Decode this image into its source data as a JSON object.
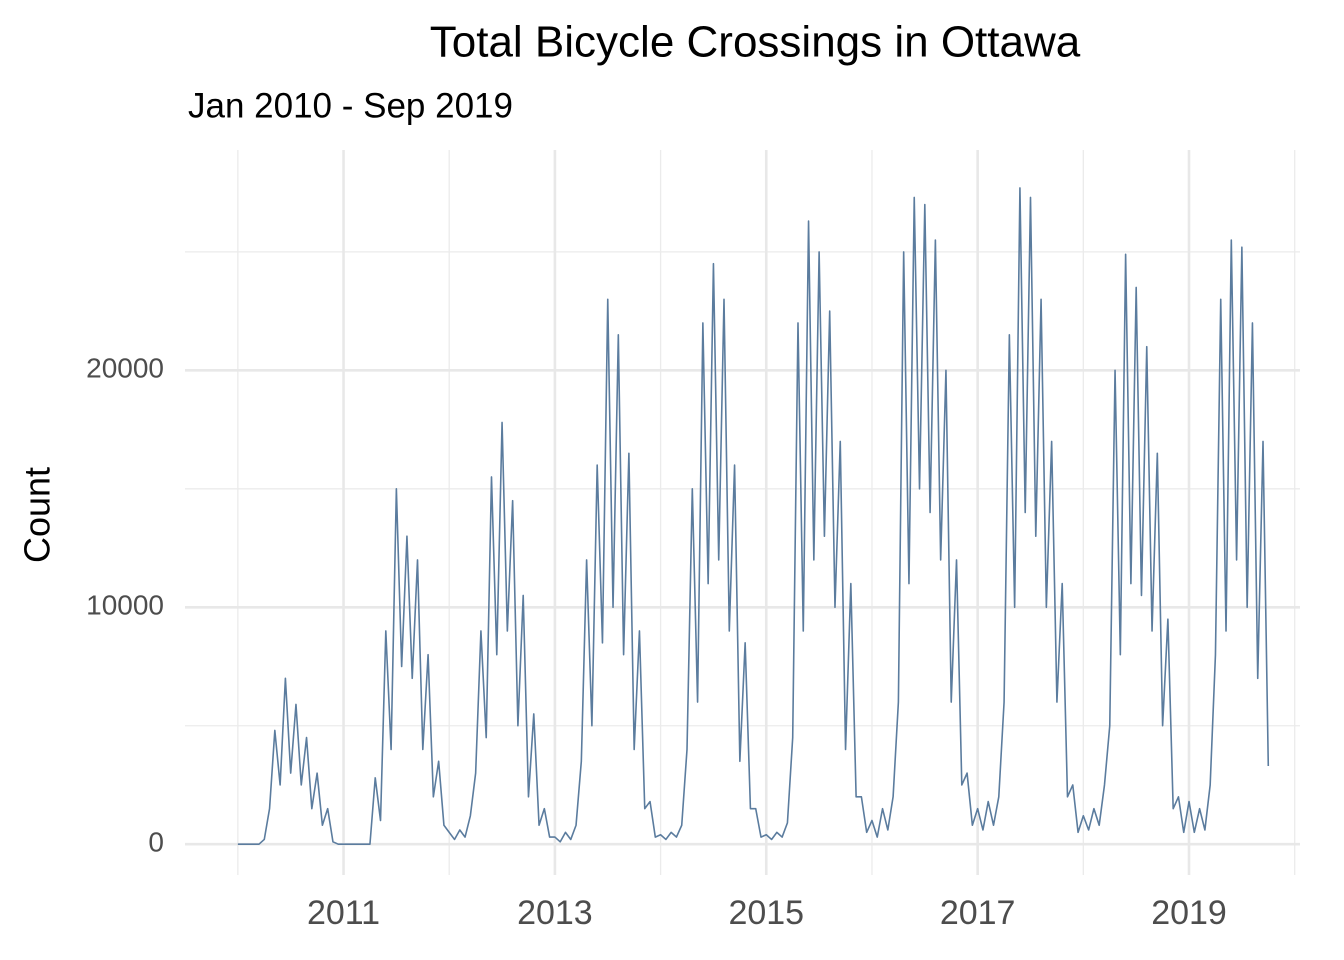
{
  "chart_data": {
    "type": "line",
    "title": "Total Bicycle Crossings in Ottawa",
    "subtitle": "Jan 2010 - Sep 2019",
    "y_label": "Count",
    "xlim": [
      2009.5,
      2020.05
    ],
    "xticks": [
      2011,
      2013,
      2015,
      2017,
      2019
    ],
    "x_minor_grid": [
      2010,
      2012,
      2014,
      2016,
      2018,
      2020
    ],
    "ylim": [
      -1300,
      29300
    ],
    "yticks": [
      0,
      10000,
      20000
    ],
    "y_minor_grid": [
      5000,
      15000,
      25000
    ],
    "grid": true,
    "x": [
      2010,
      2010.05,
      2010.1,
      2010.15,
      2010.2,
      2010.25,
      2010.3,
      2010.35,
      2010.4,
      2010.45,
      2010.5,
      2010.55,
      2010.6,
      2010.65,
      2010.7,
      2010.75,
      2010.8,
      2010.85,
      2010.9,
      2010.95,
      2011,
      2011.05,
      2011.1,
      2011.15,
      2011.2,
      2011.25,
      2011.3,
      2011.35,
      2011.4,
      2011.45,
      2011.5,
      2011.55,
      2011.6,
      2011.65,
      2011.7,
      2011.75,
      2011.8,
      2011.85,
      2011.9,
      2011.95,
      2012,
      2012.05,
      2012.1,
      2012.15,
      2012.2,
      2012.25,
      2012.3,
      2012.35,
      2012.4,
      2012.45,
      2012.5,
      2012.55,
      2012.6,
      2012.65,
      2012.7,
      2012.75,
      2012.8,
      2012.85,
      2012.9,
      2012.95,
      2013,
      2013.05,
      2013.1,
      2013.15,
      2013.2,
      2013.25,
      2013.3,
      2013.35,
      2013.4,
      2013.45,
      2013.5,
      2013.55,
      2013.6,
      2013.65,
      2013.7,
      2013.75,
      2013.8,
      2013.85,
      2013.9,
      2013.95,
      2014,
      2014.05,
      2014.1,
      2014.15,
      2014.2,
      2014.25,
      2014.3,
      2014.35,
      2014.4,
      2014.45,
      2014.5,
      2014.55,
      2014.6,
      2014.65,
      2014.7,
      2014.75,
      2014.8,
      2014.85,
      2014.9,
      2014.95,
      2015,
      2015.05,
      2015.1,
      2015.15,
      2015.2,
      2015.25,
      2015.3,
      2015.35,
      2015.4,
      2015.45,
      2015.5,
      2015.55,
      2015.6,
      2015.65,
      2015.7,
      2015.75,
      2015.8,
      2015.85,
      2015.9,
      2015.95,
      2016,
      2016.05,
      2016.1,
      2016.15,
      2016.2,
      2016.25,
      2016.3,
      2016.35,
      2016.4,
      2016.45,
      2016.5,
      2016.55,
      2016.6,
      2016.65,
      2016.7,
      2016.75,
      2016.8,
      2016.85,
      2016.9,
      2016.95,
      2017,
      2017.05,
      2017.1,
      2017.15,
      2017.2,
      2017.25,
      2017.3,
      2017.35,
      2017.4,
      2017.45,
      2017.5,
      2017.55,
      2017.6,
      2017.65,
      2017.7,
      2017.75,
      2017.8,
      2017.85,
      2017.9,
      2017.95,
      2018,
      2018.05,
      2018.1,
      2018.15,
      2018.2,
      2018.25,
      2018.3,
      2018.35,
      2018.4,
      2018.45,
      2018.5,
      2018.55,
      2018.6,
      2018.65,
      2018.7,
      2018.75,
      2018.8,
      2018.85,
      2018.9,
      2018.95,
      2019,
      2019.05,
      2019.1,
      2019.15,
      2019.2,
      2019.25,
      2019.3,
      2019.35,
      2019.4,
      2019.45,
      2019.5,
      2019.55,
      2019.6,
      2019.65,
      2019.7,
      2019.75
    ],
    "series": [
      {
        "name": "Count",
        "color": "#5b7c9e",
        "values": [
          0,
          0,
          0,
          0,
          0,
          200,
          1500,
          4800,
          2500,
          7000,
          3000,
          5900,
          2500,
          4500,
          1500,
          3000,
          800,
          1500,
          100,
          0,
          0,
          0,
          0,
          0,
          0,
          0,
          2800,
          1000,
          9000,
          4000,
          15000,
          7500,
          13000,
          7000,
          12000,
          4000,
          8000,
          2000,
          3500,
          800,
          500,
          200,
          600,
          300,
          1200,
          3000,
          9000,
          4500,
          15500,
          8000,
          17800,
          9000,
          14500,
          5000,
          10500,
          2000,
          5500,
          800,
          1500,
          300,
          300,
          100,
          500,
          200,
          800,
          3500,
          12000,
          5000,
          16000,
          8500,
          23000,
          10000,
          21500,
          8000,
          16500,
          4000,
          9000,
          1500,
          1800,
          300,
          400,
          200,
          500,
          300,
          800,
          4000,
          15000,
          6000,
          22000,
          11000,
          24500,
          12000,
          23000,
          9000,
          16000,
          3500,
          8500,
          1500,
          1500,
          300,
          400,
          200,
          500,
          300,
          900,
          4500,
          22000,
          9000,
          26300,
          12000,
          25000,
          13000,
          22500,
          10000,
          17000,
          4000,
          11000,
          2000,
          2000,
          500,
          1000,
          300,
          1500,
          600,
          2000,
          6000,
          25000,
          11000,
          27300,
          15000,
          27000,
          14000,
          25500,
          12000,
          20000,
          6000,
          12000,
          2500,
          3000,
          800,
          1500,
          600,
          1800,
          800,
          2000,
          6000,
          21500,
          10000,
          27700,
          14000,
          27300,
          13000,
          23000,
          10000,
          17000,
          6000,
          11000,
          2000,
          2500,
          500,
          1200,
          600,
          1500,
          800,
          2500,
          5000,
          20000,
          8000,
          24900,
          11000,
          23500,
          10500,
          21000,
          9000,
          16500,
          5000,
          9500,
          1500,
          2000,
          500,
          1800,
          500,
          1500,
          600,
          2500,
          8000,
          23000,
          9000,
          25500,
          12000,
          25200,
          10000,
          22000,
          7000,
          17000,
          3300
        ]
      }
    ]
  }
}
